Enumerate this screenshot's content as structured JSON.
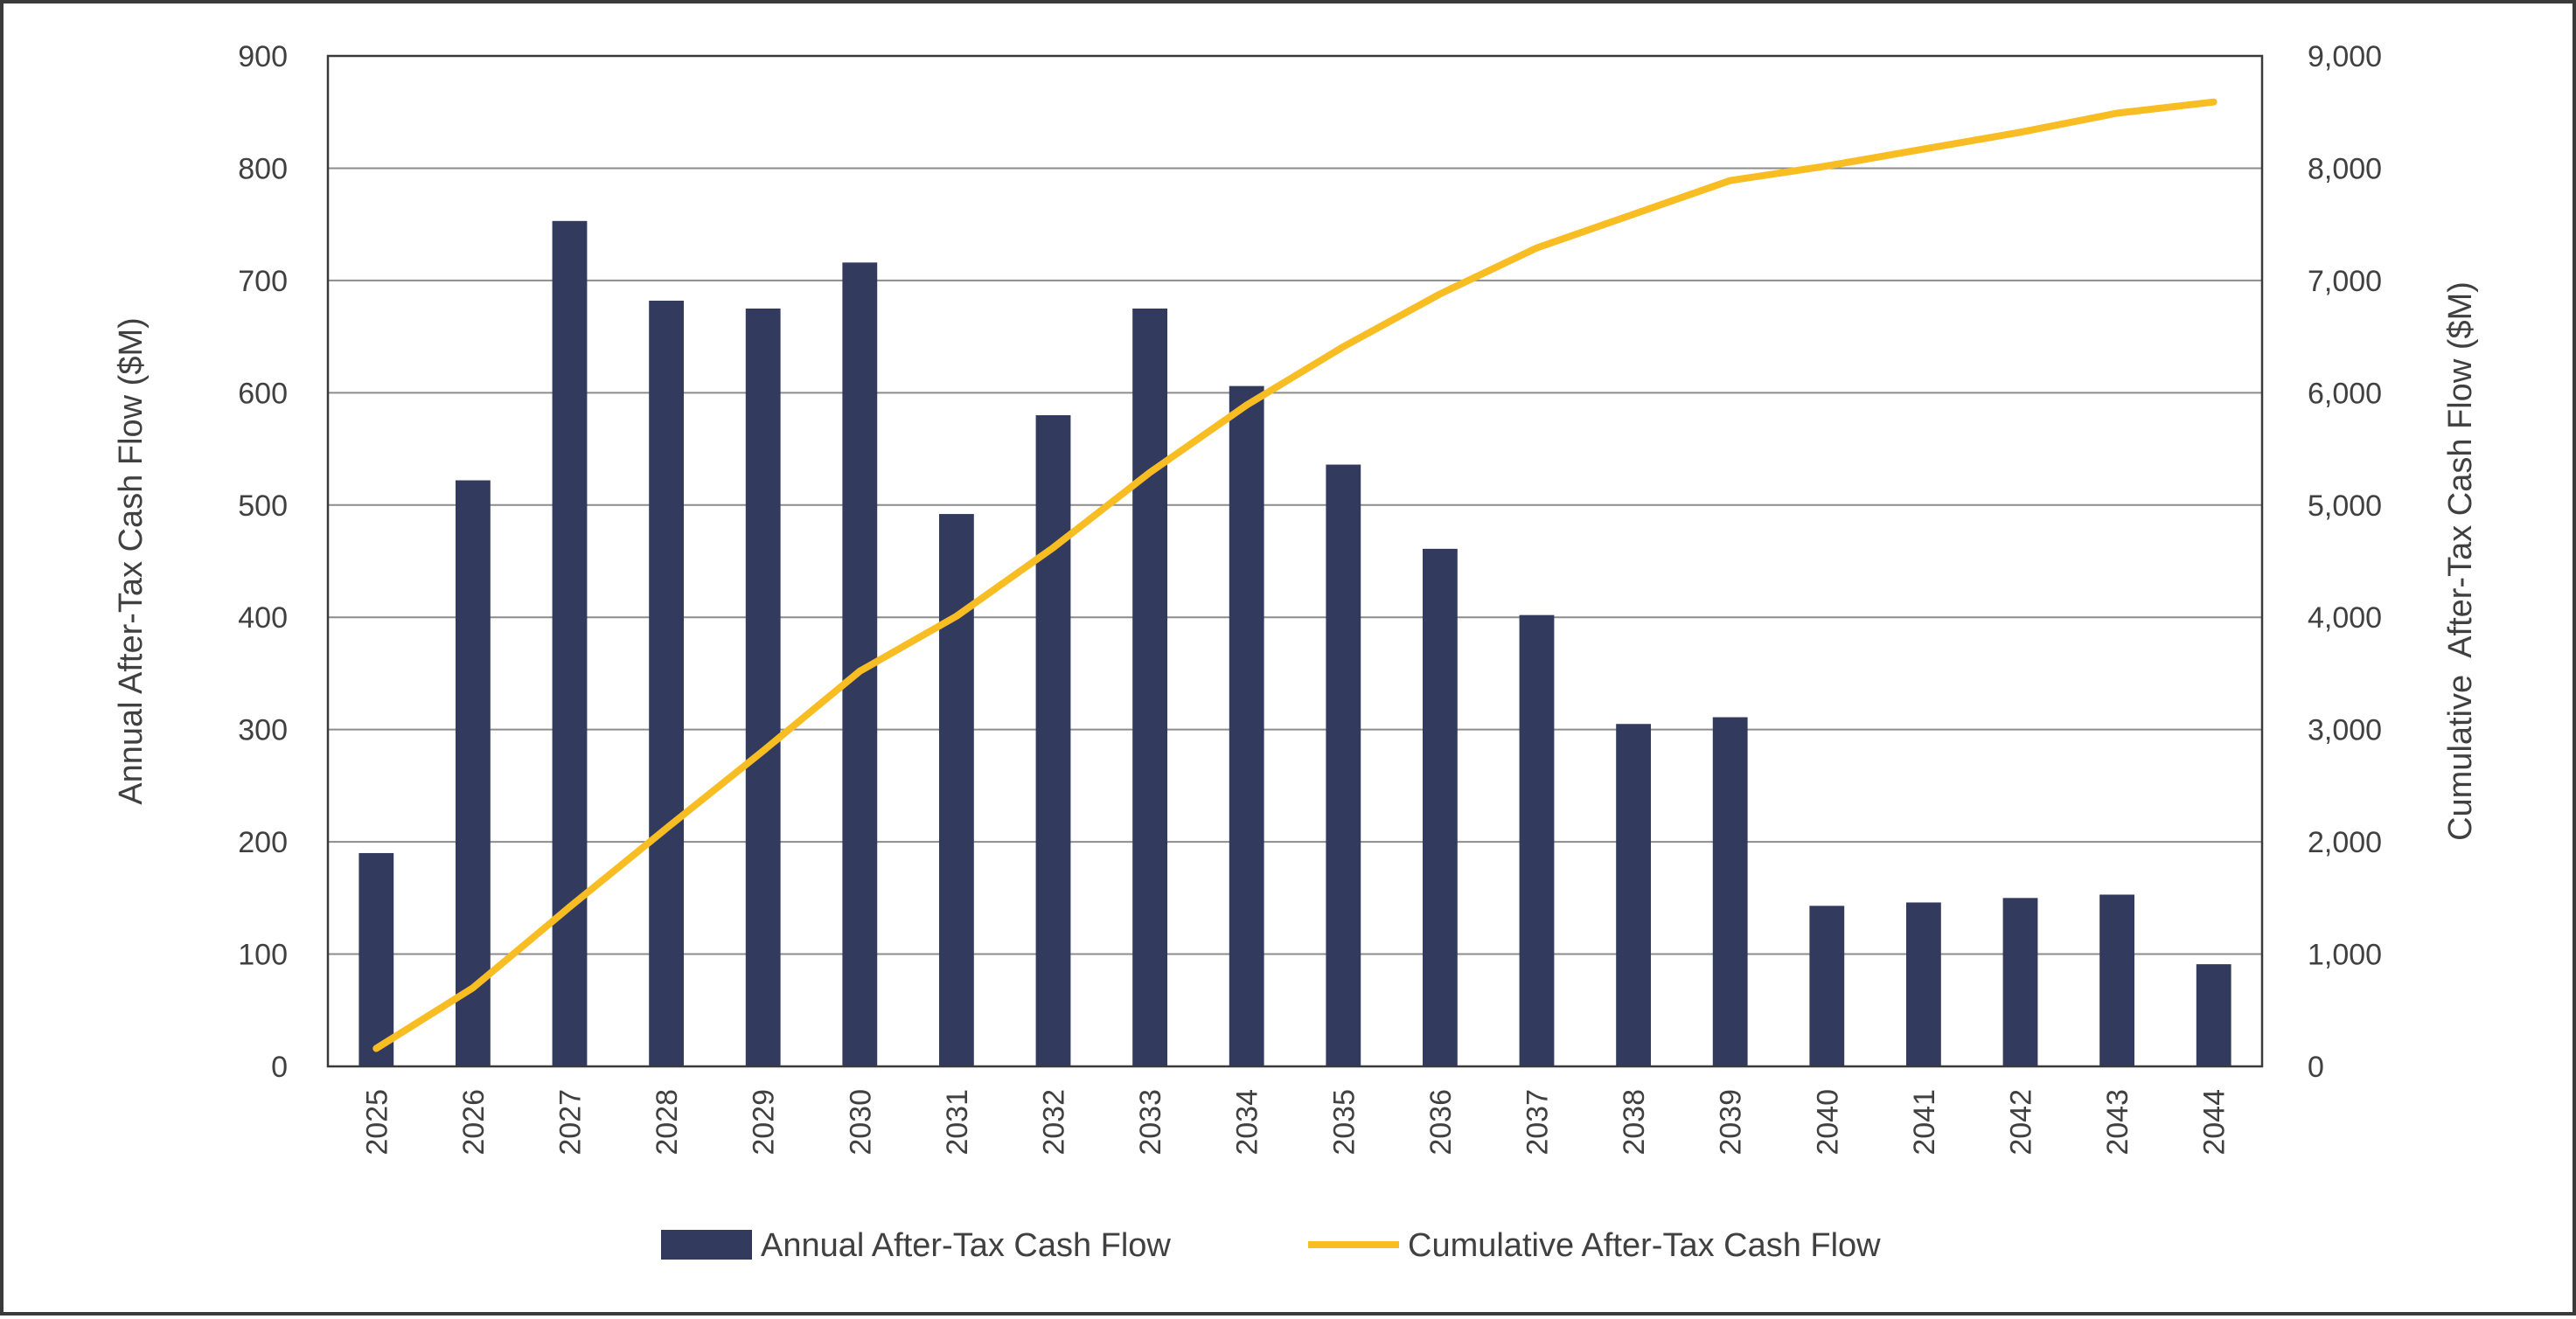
{
  "chart_data": {
    "type": "bar",
    "categories": [
      "2025",
      "2026",
      "2027",
      "2028",
      "2029",
      "2030",
      "2031",
      "2032",
      "2033",
      "2034",
      "2035",
      "2036",
      "2037",
      "2038",
      "2039",
      "2040",
      "2041",
      "2042",
      "2043",
      "2044"
    ],
    "series": [
      {
        "name": "Annual After-Tax Cash Flow",
        "type": "bar",
        "axis": "left",
        "values": [
          190,
          522,
          753,
          682,
          675,
          716,
          492,
          580,
          675,
          606,
          536,
          461,
          402,
          305,
          311,
          143,
          146,
          150,
          153,
          91
        ]
      },
      {
        "name": "Cumulative After-Tax Cash Flow",
        "type": "line",
        "axis": "right",
        "values": [
          160,
          700,
          1420,
          2120,
          2810,
          3520,
          4010,
          4620,
          5290,
          5890,
          6410,
          6880,
          7290,
          7590,
          7890,
          8020,
          8170,
          8320,
          8490,
          8590
        ]
      }
    ],
    "ylabel": "Annual After-Tax Cash Flow ($M)",
    "y2label": "Cumulative  After-Tax Cash Flow ($M)",
    "ylim": [
      0,
      900
    ],
    "y2lim": [
      0,
      9000
    ],
    "yticks": [
      "0",
      "100",
      "200",
      "300",
      "400",
      "500",
      "600",
      "700",
      "800",
      "900"
    ],
    "y2ticks": [
      "0",
      "1,000",
      "2,000",
      "3,000",
      "4,000",
      "5,000",
      "6,000",
      "7,000",
      "8,000",
      "9,000"
    ],
    "grid": true,
    "legend_position": "bottom",
    "colors": {
      "bar": "#323a5e",
      "line": "#f7bd23"
    }
  }
}
